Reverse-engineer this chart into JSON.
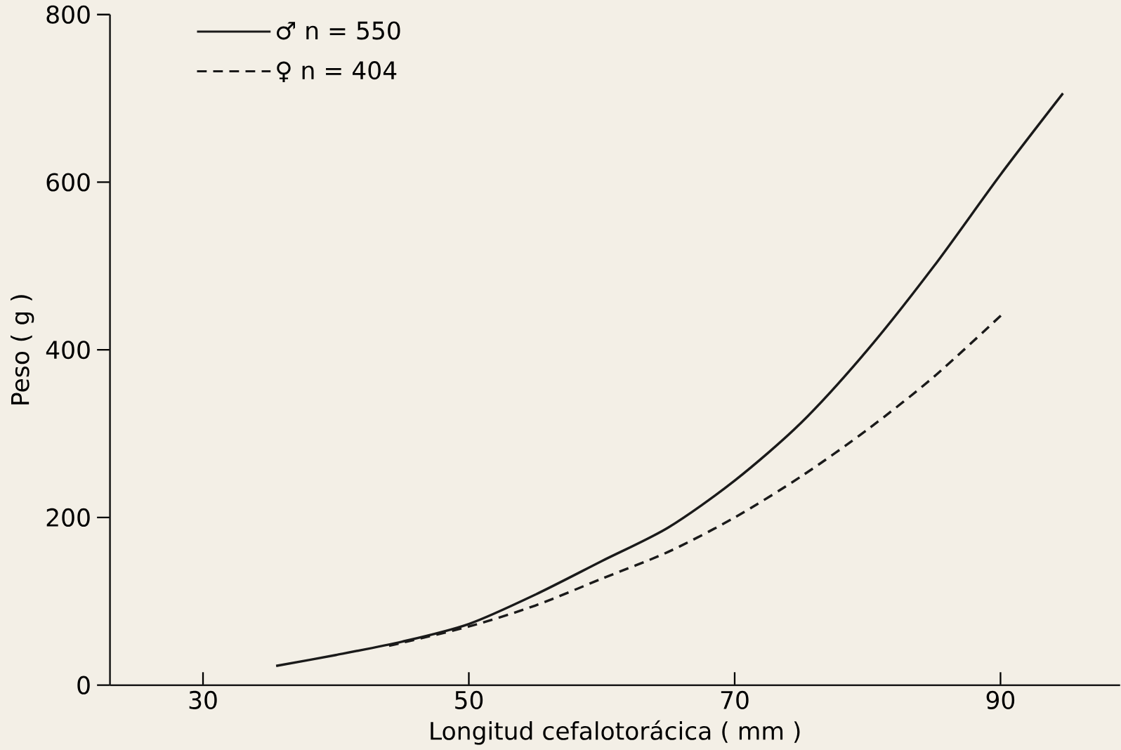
{
  "chart_data": {
    "type": "line",
    "xlabel": "Longitud cefalotorácica ( mm )",
    "ylabel": "Peso ( g )",
    "xlim": [
      23,
      99
    ],
    "xticks": [
      30,
      50,
      70,
      90
    ],
    "ylim": [
      0,
      800
    ],
    "yticks": [
      0,
      200,
      400,
      600,
      800
    ],
    "legend": "top left",
    "grid": false,
    "series": [
      {
        "name": "♂  n = 550",
        "color": "#1a1a1a",
        "line_style": "solid",
        "x": [
          35.5,
          40,
          45,
          50,
          55,
          60,
          65,
          70,
          75,
          80,
          85,
          90,
          94.7
        ],
        "values": [
          23,
          36,
          52,
          73,
          108,
          148,
          188,
          244,
          313,
          400,
          500,
          609,
          706
        ]
      },
      {
        "name": "♀  n = 404",
        "color": "#1a1a1a",
        "line_style": "dashed",
        "x": [
          44,
          50,
          55,
          60,
          65,
          70,
          75,
          80,
          85,
          90.3
        ],
        "values": [
          47,
          70,
          95,
          127,
          159,
          200,
          249,
          305,
          368,
          445
        ]
      }
    ]
  }
}
